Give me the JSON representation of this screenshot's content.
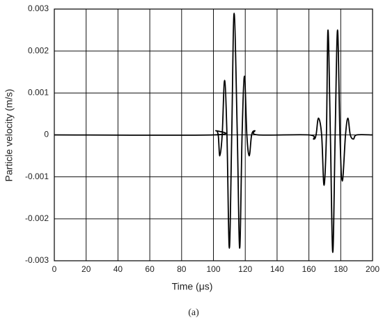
{
  "chart_data": {
    "type": "line",
    "x_label": "Time (μs)",
    "y_label": "Particle velocity (m/s)",
    "caption": "(a)",
    "x": [
      0,
      100,
      101.5,
      103,
      104,
      105.5,
      107,
      108.5,
      110,
      111.5,
      113,
      115,
      116.5,
      118,
      119.5,
      121,
      122.5,
      124,
      126,
      128,
      160,
      163,
      164.5,
      166,
      168,
      169.5,
      171,
      172,
      173.5,
      175,
      176.5,
      178,
      179.5,
      181,
      183,
      184.5,
      186,
      188,
      190,
      200
    ],
    "series": [
      {
        "name": "velocity",
        "color": "#000000",
        "values": [
          0,
          0,
          0.0001,
          0,
          -0.0005,
          0,
          0.0013,
          0,
          -0.0027,
          0,
          0.0029,
          0,
          -0.0027,
          0,
          0.0014,
          0,
          -0.0005,
          0,
          0.0001,
          0,
          0,
          -0.0001,
          0,
          0.0004,
          0,
          -0.0012,
          0,
          0.0025,
          0,
          -0.0028,
          0,
          0.0025,
          0,
          -0.0011,
          0,
          0.0004,
          0,
          -0.0001,
          0,
          0
        ]
      }
    ],
    "xlim": [
      0,
      200
    ],
    "xticks": [
      0,
      20,
      40,
      60,
      80,
      100,
      120,
      140,
      160,
      180,
      200
    ],
    "ylim": [
      -0.003,
      0.003
    ],
    "yticks": [
      -0.003,
      -0.002,
      -0.001,
      0,
      0.001,
      0.002,
      0.003
    ],
    "grid": true
  }
}
